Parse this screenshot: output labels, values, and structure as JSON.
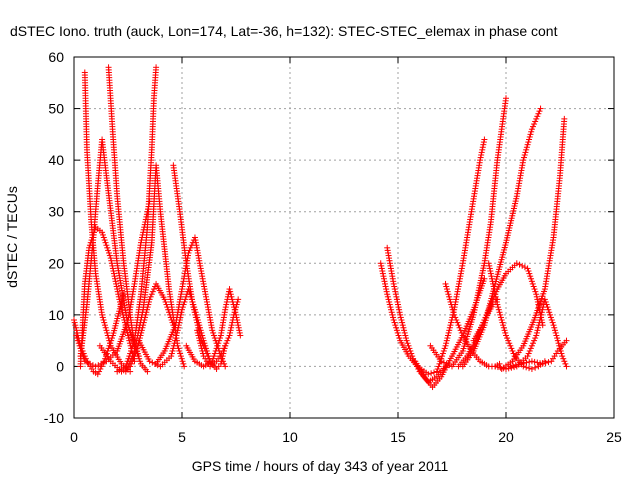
{
  "chart_data": {
    "type": "scatter",
    "title": "dSTEC Iono. truth (auck, Lon=174, Lat=-36, h=132): STEC-STEC_elemax in phase cont",
    "xlabel": "GPS time / hours of day 343 of year 2011",
    "ylabel": "dSTEC  / TECUs",
    "xlim": [
      0,
      25
    ],
    "ylim": [
      -10,
      60
    ],
    "xticks": [
      0,
      5,
      10,
      15,
      20,
      25
    ],
    "yticks": [
      -10,
      0,
      10,
      20,
      30,
      40,
      50,
      60
    ],
    "grid": true,
    "marker": "+",
    "color": "#ff0000",
    "series": [
      {
        "x": [
          0.0,
          0.3,
          0.6,
          0.9,
          1.1,
          1.4,
          1.8,
          2.3
        ],
        "y": [
          9,
          4,
          1,
          -1,
          -1.5,
          1,
          6,
          14
        ]
      },
      {
        "x": [
          0.3,
          0.4,
          0.5,
          0.7,
          1.0,
          1.3,
          1.7,
          2.1,
          2.5,
          2.8
        ],
        "y": [
          0,
          8,
          16,
          23,
          27,
          26,
          21,
          13,
          6,
          1
        ]
      },
      {
        "x": [
          0.5,
          0.6,
          0.8,
          1.0,
          1.3,
          1.7,
          2.2,
          2.6
        ],
        "y": [
          57,
          42,
          28,
          18,
          10,
          4,
          0.5,
          -1
        ]
      },
      {
        "x": [
          0.3,
          0.6,
          0.9,
          1.1,
          1.3,
          1.5,
          2.0,
          2.5,
          3.0
        ],
        "y": [
          2,
          12,
          25,
          35,
          44,
          37,
          20,
          8,
          2
        ]
      },
      {
        "x": [
          0.1,
          0.5,
          1.0,
          1.5,
          2.0,
          2.5,
          2.8,
          3.1,
          3.5
        ],
        "y": [
          6,
          1,
          0,
          1,
          3,
          9,
          16,
          24,
          32
        ]
      },
      {
        "x": [
          1.6,
          1.8,
          2.0,
          2.3,
          2.6,
          2.8,
          3.1,
          3.4
        ],
        "y": [
          58,
          45,
          33,
          20,
          10,
          4,
          0.5,
          -1
        ]
      },
      {
        "x": [
          1.2,
          1.7,
          2.2,
          2.6,
          2.9,
          3.2,
          3.5,
          3.8,
          4.2,
          4.6
        ],
        "y": [
          4,
          1,
          -1,
          0,
          3,
          8,
          13,
          16,
          13,
          8
        ]
      },
      {
        "x": [
          2.0,
          2.4,
          2.8,
          3.1,
          3.4,
          3.6,
          3.7,
          3.8
        ],
        "y": [
          -1,
          0,
          5,
          14,
          27,
          42,
          52,
          58
        ]
      },
      {
        "x": [
          2.4,
          2.8,
          3.2,
          3.6,
          3.8,
          4.0,
          4.4,
          4.8,
          5.1
        ],
        "y": [
          -1,
          3,
          11,
          24,
          39,
          30,
          15,
          4,
          0
        ]
      },
      {
        "x": [
          3.0,
          3.5,
          4.0,
          4.5,
          4.8,
          5.0,
          5.3,
          5.6,
          6.0,
          6.3
        ],
        "y": [
          5,
          1,
          0,
          2,
          7,
          11,
          15,
          11,
          5,
          1
        ]
      },
      {
        "x": [
          3.8,
          4.2,
          4.7,
          5.0,
          5.3,
          5.6,
          6.0,
          6.4,
          6.8,
          7.0
        ],
        "y": [
          0.5,
          3,
          8,
          15,
          22,
          25,
          16,
          7,
          2,
          0
        ]
      },
      {
        "x": [
          4.6,
          4.9,
          5.2,
          5.5,
          5.9,
          6.3,
          6.6,
          6.8,
          7.0
        ],
        "y": [
          39,
          30,
          20,
          12,
          5,
          1,
          -0.5,
          0.5,
          4
        ]
      },
      {
        "x": [
          5.2,
          5.6,
          6.0,
          6.4,
          6.8,
          7.0,
          7.2,
          7.5,
          7.7
        ],
        "y": [
          4,
          1,
          0,
          1,
          6,
          11,
          15,
          10,
          6
        ]
      },
      {
        "x": [
          5.7,
          6.0,
          6.3,
          6.6,
          6.9,
          7.2,
          7.4,
          7.6
        ],
        "y": [
          7,
          2,
          0,
          1,
          3,
          6,
          10,
          13
        ]
      },
      {
        "x": [
          14.2,
          14.5,
          14.8,
          15.1,
          15.5,
          15.9,
          16.4,
          16.8
        ],
        "y": [
          20,
          14,
          9,
          5,
          2,
          0,
          -1.5,
          -1
        ]
      },
      {
        "x": [
          14.5,
          14.8,
          15.1,
          15.4,
          15.7,
          16.0,
          16.4,
          16.8,
          17.2
        ],
        "y": [
          23,
          16,
          10,
          5,
          1.5,
          -1,
          -3,
          -2,
          0
        ]
      },
      {
        "x": [
          15.8,
          16.2,
          16.6,
          17.0,
          17.5,
          18.0,
          18.5,
          19.0
        ],
        "y": [
          1,
          -2,
          -4,
          -2,
          2,
          6,
          11,
          17
        ]
      },
      {
        "x": [
          16.5,
          17.0,
          17.5,
          18.0,
          18.5,
          19.0,
          19.3,
          19.6,
          20.0
        ],
        "y": [
          4,
          1,
          0,
          3,
          10,
          20,
          28,
          40,
          52
        ]
      },
      {
        "x": [
          16.8,
          17.2,
          17.6,
          18.0,
          18.4,
          18.8,
          19.0
        ],
        "y": [
          -1,
          4,
          11,
          20,
          30,
          40,
          44
        ]
      },
      {
        "x": [
          17.2,
          17.6,
          18.0,
          18.4,
          18.8,
          19.2,
          19.5,
          19.7
        ],
        "y": [
          16,
          10,
          6,
          3,
          1,
          0,
          0,
          0.5
        ]
      },
      {
        "x": [
          17.8,
          18.2,
          18.6,
          19.0,
          19.4,
          19.6
        ],
        "y": [
          0,
          2,
          5,
          9,
          12,
          13
        ]
      },
      {
        "x": [
          18.5,
          18.9,
          19.2,
          19.6,
          20.0,
          20.5,
          21.0,
          21.4,
          21.7
        ],
        "y": [
          5,
          8,
          11,
          15,
          18,
          20,
          19,
          14,
          8
        ]
      },
      {
        "x": [
          18.0,
          18.5,
          19.0,
          19.5,
          20.0,
          20.5,
          20.8,
          21.2,
          21.6
        ],
        "y": [
          0,
          3,
          8,
          16,
          24,
          33,
          40,
          46,
          50
        ]
      },
      {
        "x": [
          19.2,
          19.6,
          20.0,
          20.4,
          20.8,
          21.2,
          21.5,
          21.8
        ],
        "y": [
          20,
          12,
          6,
          2,
          0,
          -0.5,
          0,
          1
        ]
      },
      {
        "x": [
          19.5,
          20.0,
          20.5,
          21.0,
          21.4,
          21.8,
          22.2,
          22.6,
          22.8
        ],
        "y": [
          0,
          -0.5,
          0,
          2,
          6,
          13,
          8,
          2,
          0
        ]
      },
      {
        "x": [
          19.8,
          20.3,
          20.8,
          21.3,
          21.8,
          22.2,
          22.5,
          22.7
        ],
        "y": [
          -0.5,
          1,
          4,
          9,
          15,
          25,
          37,
          48
        ]
      },
      {
        "x": [
          20.2,
          20.7,
          21.2,
          21.7,
          22.1,
          22.4,
          22.8
        ],
        "y": [
          0,
          0.5,
          1,
          0.5,
          1,
          3,
          5
        ]
      }
    ]
  }
}
